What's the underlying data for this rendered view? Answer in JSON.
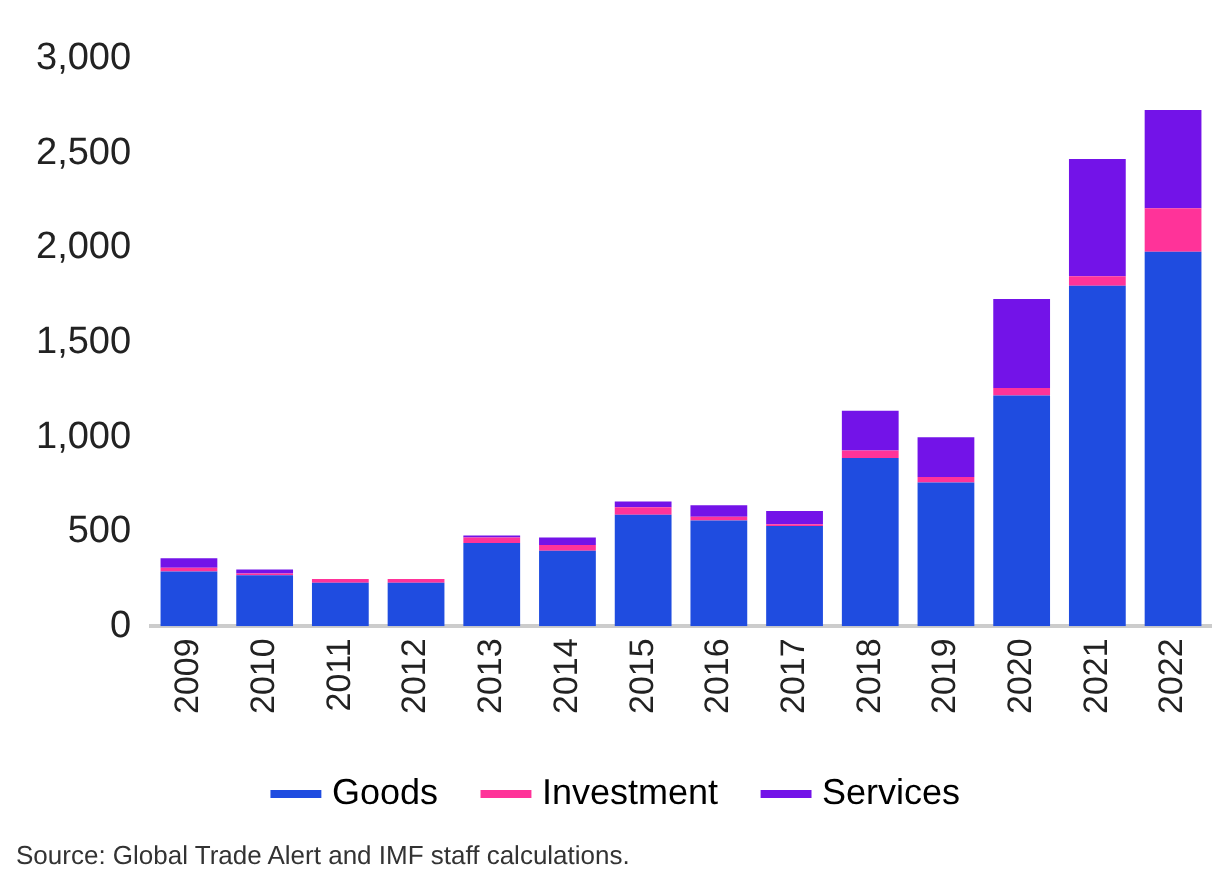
{
  "chart_data": {
    "type": "bar",
    "stacked": true,
    "categories": [
      "2009",
      "2010",
      "2011",
      "2012",
      "2013",
      "2014",
      "2015",
      "2016",
      "2017",
      "2018",
      "2019",
      "2020",
      "2021",
      "2022"
    ],
    "series": [
      {
        "name": "Goods",
        "color": "#1f4ce0",
        "values": [
          290,
          270,
          230,
          230,
          440,
          400,
          590,
          560,
          530,
          890,
          760,
          1220,
          1800,
          1980
        ]
      },
      {
        "name": "Investment",
        "color": "#ff3399",
        "values": [
          20,
          10,
          20,
          20,
          30,
          30,
          40,
          20,
          10,
          40,
          30,
          40,
          50,
          230
        ]
      },
      {
        "name": "Services",
        "color": "#7313e8",
        "values": [
          50,
          20,
          0,
          0,
          10,
          40,
          30,
          60,
          70,
          210,
          210,
          470,
          620,
          520
        ]
      }
    ],
    "ylim": [
      0,
      3000
    ],
    "yticks": [
      0,
      500,
      {
        "value": 1000,
        "label": "1,000"
      },
      {
        "value": 1500,
        "label": "1,500"
      },
      {
        "value": 2000,
        "label": "2,000"
      },
      {
        "value": 2500,
        "label": "2,500"
      },
      {
        "value": 3000,
        "label": "3,000"
      }
    ],
    "grid": false,
    "legend": "bottom",
    "annotations": [
      "Source: Global Trade Alert and IMF staff calculations."
    ]
  }
}
